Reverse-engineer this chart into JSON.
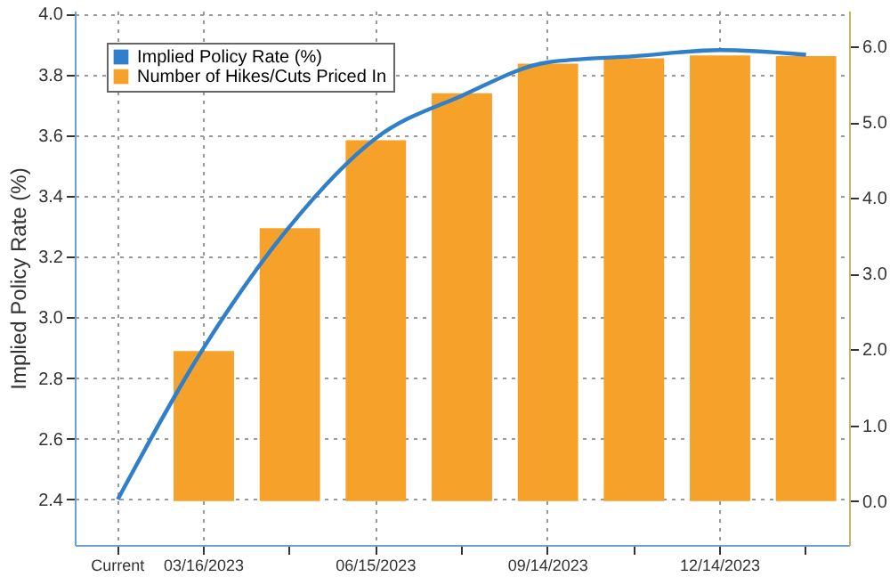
{
  "chart_data": {
    "type": "bar",
    "ylabel": "Implied Policy Rate (%)",
    "categories": [
      "Current",
      "03/16/2023",
      null,
      "06/15/2023",
      null,
      "09/14/2023",
      null,
      "12/14/2023",
      null
    ],
    "series": [
      {
        "name": "Implied Policy Rate (%)",
        "type": "line",
        "color": "#2f7fcb",
        "values": [
          2.4,
          2.9,
          3.3,
          3.59,
          3.73,
          3.84,
          3.86,
          3.88,
          3.865
        ]
      },
      {
        "name": "Number of Hikes/Cuts Priced In",
        "axis": "y2",
        "color": "#f5a12a",
        "values": [
          0,
          1.98,
          3.6,
          4.76,
          5.38,
          5.77,
          5.84,
          5.88,
          5.87
        ]
      }
    ],
    "ylim": [
      2.25,
      4.01
    ],
    "yticks": [
      2.4,
      2.6,
      2.8,
      {
        "value": 3,
        "label": "3.0"
      },
      3.2,
      3.4,
      3.6,
      3.8,
      {
        "value": 4,
        "label": "4.0"
      }
    ],
    "y2lim": [
      -0.58,
      6.47
    ],
    "y2ticks": [
      {
        "value": 0,
        "label": "0.0"
      },
      {
        "value": 1,
        "label": "1.0"
      },
      {
        "value": 2,
        "label": "2.0"
      },
      {
        "value": 3,
        "label": "3.0"
      },
      {
        "value": 4,
        "label": "4.0"
      },
      {
        "value": 5,
        "label": "5.0"
      },
      {
        "value": 6,
        "label": "6.0"
      }
    ],
    "grid": true,
    "legend": "top left",
    "marker": "none",
    "line_style": "solid"
  }
}
